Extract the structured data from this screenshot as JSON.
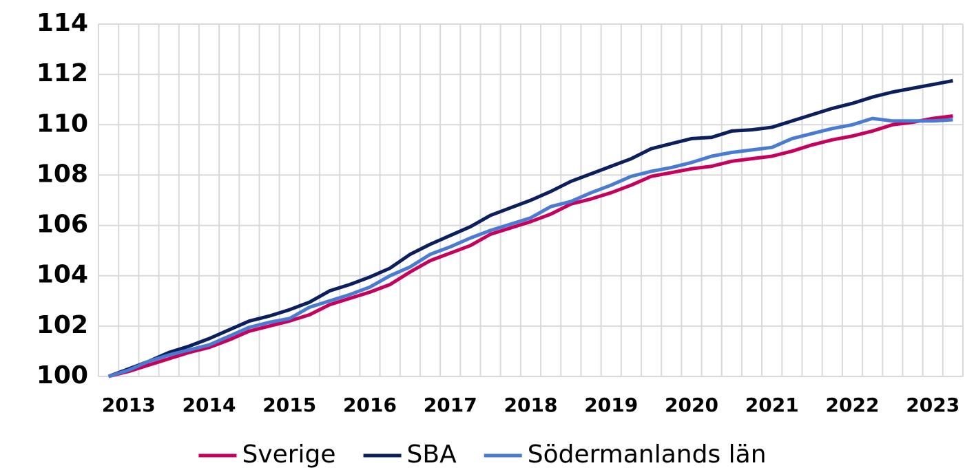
{
  "chart_data": {
    "type": "line",
    "categories": [
      null,
      "2013",
      null,
      null,
      null,
      "2014",
      null,
      null,
      null,
      "2015",
      null,
      null,
      null,
      "2016",
      null,
      null,
      null,
      "2017",
      null,
      null,
      null,
      "2018",
      null,
      null,
      null,
      "2019",
      null,
      null,
      null,
      "2020",
      null,
      null,
      null,
      "2021",
      null,
      null,
      null,
      "2022",
      null,
      null,
      null,
      "2023",
      null
    ],
    "series": [
      {
        "name": "Sverige",
        "color": "#c6005d",
        "values": [
          100,
          100.2,
          100.45,
          100.7,
          100.95,
          101.15,
          101.45,
          101.8,
          102.0,
          102.2,
          102.45,
          102.85,
          103.1,
          103.35,
          103.65,
          104.15,
          104.6,
          104.9,
          105.2,
          105.65,
          105.9,
          106.15,
          106.45,
          106.85,
          107.05,
          107.3,
          107.6,
          107.95,
          108.1,
          108.25,
          108.35,
          108.55,
          108.65,
          108.75,
          108.95,
          109.2,
          109.4,
          109.55,
          109.75,
          110.0,
          110.1,
          110.25,
          110.35
        ]
      },
      {
        "name": "SBA",
        "color": "#0b1f5e",
        "values": [
          100,
          100.3,
          100.6,
          100.95,
          101.2,
          101.5,
          101.85,
          102.2,
          102.4,
          102.65,
          102.95,
          103.4,
          103.65,
          103.95,
          104.3,
          104.85,
          105.25,
          105.6,
          105.95,
          106.4,
          106.7,
          107.0,
          107.35,
          107.75,
          108.05,
          108.35,
          108.65,
          109.05,
          109.25,
          109.45,
          109.5,
          109.75,
          109.8,
          109.9,
          110.15,
          110.4,
          110.65,
          110.85,
          111.1,
          111.3,
          111.45,
          111.6,
          111.75
        ]
      },
      {
        "name": "Södermanlands län",
        "color": "#4a7bd2",
        "values": [
          100,
          100.25,
          100.6,
          100.85,
          101.05,
          101.25,
          101.6,
          101.95,
          102.15,
          102.3,
          102.75,
          103.0,
          103.25,
          103.55,
          104.0,
          104.35,
          104.85,
          105.15,
          105.5,
          105.8,
          106.05,
          106.3,
          106.75,
          106.95,
          107.3,
          107.6,
          107.95,
          108.15,
          108.3,
          108.5,
          108.75,
          108.9,
          109.0,
          109.1,
          109.45,
          109.65,
          109.85,
          110.0,
          110.25,
          110.15,
          110.15,
          110.15,
          110.2
        ]
      }
    ],
    "ylim": [
      100,
      114
    ],
    "yticks": [
      100,
      102,
      104,
      106,
      108,
      110,
      112,
      114
    ],
    "grid": true,
    "legend": "bottom"
  }
}
